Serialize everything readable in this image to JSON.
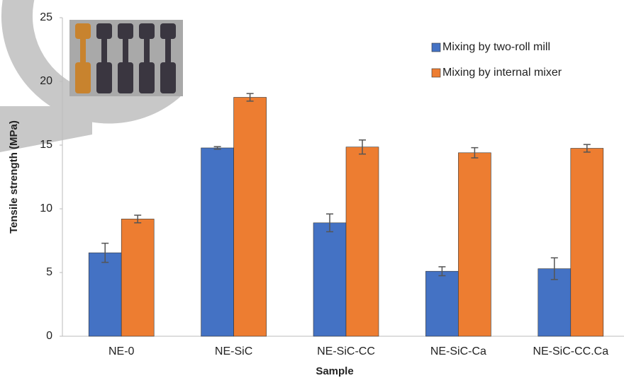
{
  "chart_data": {
    "type": "bar",
    "x_label": "Sample",
    "y_label": "Tensile strength (MPa)",
    "categories": [
      "NE-0",
      "NE-SiC",
      "NE-SiC-CC",
      "NE-SiC-Ca",
      "NE-SiC-CC.Ca"
    ],
    "series": [
      {
        "name": "Mixing by two-roll mill",
        "color": "#4472c4",
        "values": [
          6.55,
          14.78,
          8.9,
          5.1,
          5.3
        ],
        "errors": [
          0.75,
          0.1,
          0.7,
          0.35,
          0.85
        ]
      },
      {
        "name": "Mixing by internal mixer",
        "color": "#ed7d31",
        "values": [
          9.2,
          18.75,
          14.85,
          14.4,
          14.75
        ],
        "errors": [
          0.3,
          0.3,
          0.55,
          0.4,
          0.3
        ]
      }
    ],
    "ylim": [
      0,
      25
    ],
    "yticks": [
      0,
      5,
      10,
      15,
      20,
      25
    ],
    "grid": false,
    "legend": "top-right"
  }
}
